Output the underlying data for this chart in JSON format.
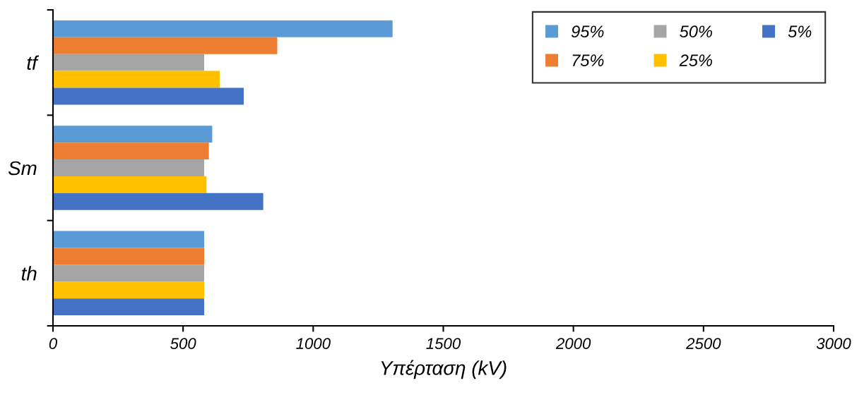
{
  "chart_data": {
    "type": "bar",
    "orientation": "horizontal",
    "xlabel": "Υπέρταση (kV)",
    "categories": [
      "tf",
      "Sm",
      "th"
    ],
    "series": [
      {
        "name": "95%",
        "color": "#5b9bd5",
        "values": [
          1305,
          612,
          581
        ]
      },
      {
        "name": "75%",
        "color": "#ed7d31",
        "values": [
          862,
          599,
          581
        ]
      },
      {
        "name": "50%",
        "color": "#a5a5a5",
        "values": [
          581,
          581,
          581
        ]
      },
      {
        "name": "25%",
        "color": "#ffc000",
        "values": [
          641,
          590,
          581
        ]
      },
      {
        "name": "5%",
        "color": "#4472c4",
        "values": [
          733,
          808,
          581
        ]
      }
    ],
    "xlim": [
      0,
      3000
    ],
    "xticks": [
      0,
      500,
      1000,
      1500,
      2000,
      2500,
      3000
    ],
    "grid": false,
    "legend": "top right"
  }
}
